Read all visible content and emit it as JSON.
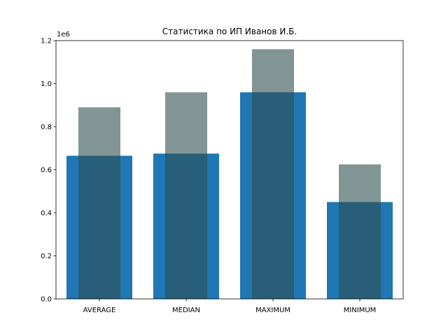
{
  "chart_data": {
    "type": "bar",
    "title": "Статистика по ИП Иванов И.Б.",
    "xlabel": "",
    "ylabel": "",
    "offset_label": "1e6",
    "categories": [
      "AVERAGE",
      "MEDIAN",
      "MAXIMUM",
      "MINIMUM"
    ],
    "series": [
      {
        "values": [
          665000,
          675000,
          960000,
          450000
        ],
        "color": "#1f77b4",
        "opacity": 1.0
      },
      {
        "values": [
          890000,
          960000,
          1160000,
          625000
        ],
        "color": "#2f4f4f",
        "opacity": 0.6
      }
    ],
    "ylim": [
      0,
      1200000
    ],
    "yticks": [
      0,
      200000,
      400000,
      600000,
      800000,
      1000000,
      1200000
    ],
    "ytick_labels": [
      "0.0",
      "0.2",
      "0.4",
      "0.6",
      "0.8",
      "1.0",
      "1.2"
    ],
    "grid": false,
    "legend": "none"
  }
}
